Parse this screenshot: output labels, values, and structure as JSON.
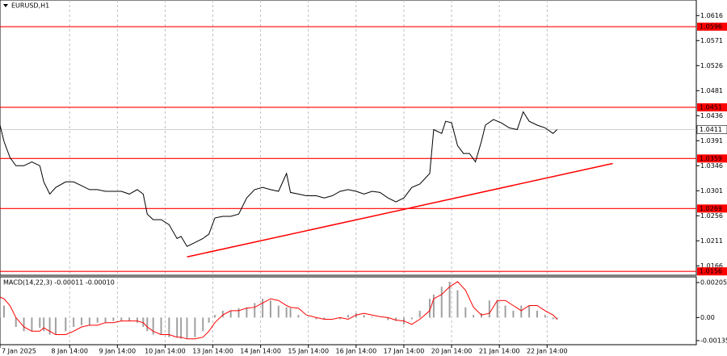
{
  "chart_data": [
    {
      "type": "line",
      "title": "EURUSD,H1",
      "color": "#000000",
      "grid": true,
      "x": [
        0,
        2,
        5,
        8,
        12,
        16,
        20,
        22,
        25,
        28,
        33,
        37,
        41,
        45,
        49,
        53,
        57,
        61,
        65,
        69,
        72,
        74,
        77,
        81,
        85,
        89,
        91,
        94,
        98,
        102,
        105,
        108,
        112,
        116,
        120,
        124,
        128,
        132,
        136,
        140,
        144,
        146,
        150,
        154,
        159,
        163,
        167,
        171,
        175,
        179,
        183,
        187,
        191,
        195,
        199,
        203,
        207,
        211,
        216,
        218,
        222,
        224,
        227,
        230,
        233,
        236,
        239,
        242,
        244,
        248,
        252,
        256,
        260,
        263,
        266,
        270,
        274,
        278,
        280
      ],
      "values": [
        1.0419,
        1.039,
        1.0361,
        1.0346,
        1.0346,
        1.0353,
        1.0346,
        1.0317,
        1.0295,
        1.0307,
        1.0317,
        1.0317,
        1.031,
        1.0303,
        1.0303,
        1.03,
        1.03,
        1.03,
        1.0295,
        1.0303,
        1.0295,
        1.0259,
        1.0249,
        1.0249,
        1.024,
        1.0215,
        1.0219,
        1.0201,
        1.0208,
        1.0215,
        1.0223,
        1.0252,
        1.0255,
        1.0255,
        1.0259,
        1.0288,
        1.0303,
        1.0307,
        1.0303,
        1.03,
        1.0332,
        1.0298,
        1.0295,
        1.0292,
        1.0292,
        1.0288,
        1.0292,
        1.03,
        1.0303,
        1.03,
        1.0295,
        1.03,
        1.0298,
        1.0288,
        1.0281,
        1.0288,
        1.0307,
        1.0313,
        1.0332,
        1.0411,
        1.0404,
        1.0426,
        1.0423,
        1.0382,
        1.0368,
        1.0368,
        1.0353,
        1.039,
        1.0419,
        1.0429,
        1.0423,
        1.0414,
        1.0411,
        1.0443,
        1.0426,
        1.0419,
        1.0414,
        1.0404,
        1.0411
      ],
      "xlim": [
        0,
        350
      ],
      "xticks": [
        {
          "value": 0,
          "label": "7 Jan 2025"
        },
        {
          "value": 35,
          "label": "8 Jan 14:00"
        },
        {
          "value": 59,
          "label": "9 Jan 14:00"
        },
        {
          "value": 83,
          "label": "10 Jan 14:00"
        },
        {
          "value": 107,
          "label": "13 Jan 14:00"
        },
        {
          "value": 131,
          "label": "14 Jan 14:00"
        },
        {
          "value": 155,
          "label": "15 Jan 14:00"
        },
        {
          "value": 179,
          "label": "16 Jan 14:00"
        },
        {
          "value": 203,
          "label": "17 Jan 14:00"
        },
        {
          "value": 227,
          "label": "20 Jan 14:00"
        },
        {
          "value": 251,
          "label": "21 Jan 14:00"
        },
        {
          "value": 275,
          "label": "22 Jan 14:00"
        }
      ],
      "ylim": [
        1.0149,
        1.0644
      ],
      "yticks": [
        1.0616,
        1.0571,
        1.0526,
        1.0481,
        1.0436,
        1.0391,
        1.0346,
        1.0301,
        1.0256,
        1.0211,
        1.0166
      ],
      "levels": [
        1.0596,
        1.0451,
        1.0359,
        1.0269,
        1.0156
      ],
      "level_color": "#ff0000",
      "last_price": 1.0411,
      "trendline": {
        "x": [
          94,
          308
        ],
        "y": [
          1.0182,
          1.035
        ],
        "color": "#ff0000"
      }
    },
    {
      "type": "macd",
      "title": "MACD(14,22,3) -0.00011 -0.00010",
      "x": [
        0,
        2,
        5,
        8,
        12,
        16,
        20,
        22,
        25,
        28,
        33,
        37,
        41,
        45,
        49,
        53,
        57,
        61,
        65,
        69,
        72,
        74,
        77,
        81,
        85,
        89,
        91,
        94,
        98,
        102,
        105,
        108,
        112,
        116,
        120,
        124,
        128,
        132,
        136,
        140,
        144,
        146,
        150,
        154,
        159,
        163,
        167,
        171,
        175,
        179,
        183,
        187,
        191,
        195,
        199,
        203,
        207,
        211,
        216,
        218,
        222,
        226,
        230,
        234,
        238,
        242,
        246,
        250,
        254,
        258,
        262,
        266,
        270,
        274,
        278,
        280
      ],
      "histogram": [
        0.0011,
        0.0007,
        0,
        -0.00055,
        -0.0008,
        -0.0008,
        -0.0006,
        -0.0008,
        -0.001,
        -0.001,
        -0.0008,
        -0.00055,
        -0.00045,
        -0.00045,
        -0.0003,
        -0.0003,
        -0.0002,
        -0.0002,
        -0.0002,
        -0.0003,
        -0.00055,
        -0.0008,
        -0.001,
        -0.001,
        -0.00115,
        -0.00115,
        -0.00125,
        -0.00125,
        -0.00115,
        -0.0008,
        -0.0003,
        0.00015,
        0.0004,
        0.0004,
        0.00055,
        0.0006,
        0.00085,
        0.0011,
        0.001,
        0.0007,
        0.0006,
        0.00055,
        0.00015,
        0,
        -0.0001,
        -0.0001,
        0,
        -0.0001,
        0.00015,
        0.00025,
        0.00015,
        5e-05,
        0,
        -0.00015,
        -0.0002,
        -0.0004,
        -0.0001,
        0.0004,
        0.0011,
        0.00135,
        0.0018,
        0.0021,
        0.0016,
        0.0006,
        0.00015,
        0.00025,
        0.001,
        0.001,
        0.0007,
        0.0004,
        0.0007,
        0.0007,
        0.0004,
        0.00015,
        -0.0001,
        -0.00011
      ],
      "signal": [
        0.0012,
        0.0011,
        0.0007,
        0,
        -0.00055,
        -0.0008,
        -0.0008,
        -0.0006,
        -0.0008,
        -0.001,
        -0.001,
        -0.0008,
        -0.00055,
        -0.00045,
        -0.00045,
        -0.0003,
        -0.0003,
        -0.0002,
        -0.0002,
        -0.0002,
        -0.0003,
        -0.00055,
        -0.0008,
        -0.001,
        -0.001,
        -0.00115,
        -0.00115,
        -0.00125,
        -0.00125,
        -0.00115,
        -0.0008,
        -0.0003,
        0.00015,
        0.0004,
        0.0004,
        0.00055,
        0.0006,
        0.00085,
        0.0011,
        0.001,
        0.0007,
        0.0006,
        0.00055,
        0.00015,
        0,
        -0.0001,
        -0.0001,
        0,
        -0.0001,
        0.00015,
        0.00025,
        0.00015,
        5e-05,
        0,
        -0.00015,
        -0.0002,
        -0.0004,
        -0.0001,
        0.0004,
        0.0011,
        0.00135,
        0.0018,
        0.0021,
        0.0016,
        0.0006,
        0.00015,
        0.00025,
        0.001,
        0.001,
        0.0007,
        0.0004,
        0.0007,
        0.0007,
        0.0004,
        0.00015,
        -0.0001
      ],
      "histogram_color": "#a0a0a0",
      "signal_color": "#ff0000",
      "ylim": [
        -0.00159,
        0.00238
      ],
      "yticks": [
        0.00205,
        {
          "value": 0,
          "label": "0.00"
        },
        -0.00135
      ]
    }
  ]
}
